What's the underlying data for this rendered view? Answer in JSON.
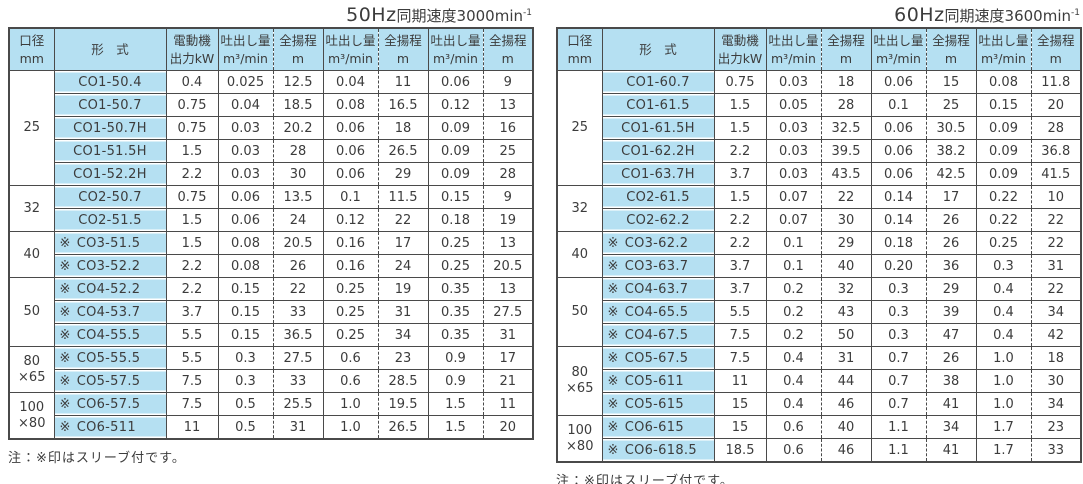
{
  "columns": {
    "diameter": {
      "line1": "口径",
      "line2": "mm"
    },
    "model": "形　式",
    "motor": {
      "line1": "電動機",
      "line2": "出力kW"
    },
    "discharge": {
      "line1": "吐出し量",
      "line2": "m³/min"
    },
    "head": {
      "line1": "全揚程",
      "line2": "m"
    }
  },
  "sleeve_mark": "※",
  "tables": [
    {
      "id": "50hz",
      "title": {
        "freq": "50Hz",
        "label": "同期速度3000min",
        "sup": "-1"
      },
      "note": "注：※印はスリーブ付です。",
      "groups": [
        {
          "size_lines": [
            "25"
          ],
          "rows": [
            {
              "sleeve": false,
              "model": "CO1-50.4",
              "values": [
                "0.4",
                "0.025",
                "12.5",
                "0.04",
                "11",
                "0.06",
                "9"
              ]
            },
            {
              "sleeve": false,
              "model": "CO1-50.7",
              "values": [
                "0.75",
                "0.04",
                "18.5",
                "0.08",
                "16.5",
                "0.12",
                "13"
              ]
            },
            {
              "sleeve": false,
              "model": "CO1-50.7H",
              "values": [
                "0.75",
                "0.03",
                "20.2",
                "0.06",
                "18",
                "0.09",
                "16"
              ]
            },
            {
              "sleeve": false,
              "model": "CO1-51.5H",
              "values": [
                "1.5",
                "0.03",
                "28",
                "0.06",
                "26.5",
                "0.09",
                "25"
              ]
            },
            {
              "sleeve": false,
              "model": "CO1-52.2H",
              "values": [
                "2.2",
                "0.03",
                "30",
                "0.06",
                "29",
                "0.09",
                "28"
              ]
            }
          ]
        },
        {
          "size_lines": [
            "32"
          ],
          "rows": [
            {
              "sleeve": false,
              "model": "CO2-50.7",
              "values": [
                "0.75",
                "0.06",
                "13.5",
                "0.1",
                "11.5",
                "0.15",
                "9"
              ]
            },
            {
              "sleeve": false,
              "model": "CO2-51.5",
              "values": [
                "1.5",
                "0.06",
                "24",
                "0.12",
                "22",
                "0.18",
                "19"
              ]
            }
          ]
        },
        {
          "size_lines": [
            "40"
          ],
          "rows": [
            {
              "sleeve": true,
              "model": "CO3-51.5",
              "values": [
                "1.5",
                "0.08",
                "20.5",
                "0.16",
                "17",
                "0.25",
                "13"
              ]
            },
            {
              "sleeve": true,
              "model": "CO3-52.2",
              "values": [
                "2.2",
                "0.08",
                "26",
                "0.16",
                "24",
                "0.25",
                "20.5"
              ]
            }
          ]
        },
        {
          "size_lines": [
            "50"
          ],
          "rows": [
            {
              "sleeve": true,
              "model": "CO4-52.2",
              "values": [
                "2.2",
                "0.15",
                "22",
                "0.25",
                "19",
                "0.35",
                "13"
              ]
            },
            {
              "sleeve": true,
              "model": "CO4-53.7",
              "values": [
                "3.7",
                "0.15",
                "33",
                "0.25",
                "31",
                "0.35",
                "27.5"
              ]
            },
            {
              "sleeve": true,
              "model": "CO4-55.5",
              "values": [
                "5.5",
                "0.15",
                "36.5",
                "0.25",
                "34",
                "0.35",
                "31"
              ]
            }
          ]
        },
        {
          "size_lines": [
            "80",
            "×65"
          ],
          "rows": [
            {
              "sleeve": true,
              "model": "CO5-55.5",
              "values": [
                "5.5",
                "0.3",
                "27.5",
                "0.6",
                "23",
                "0.9",
                "17"
              ]
            },
            {
              "sleeve": true,
              "model": "CO5-57.5",
              "values": [
                "7.5",
                "0.3",
                "33",
                "0.6",
                "28.5",
                "0.9",
                "21"
              ]
            }
          ]
        },
        {
          "size_lines": [
            "100",
            "×80"
          ],
          "rows": [
            {
              "sleeve": true,
              "model": "CO6-57.5",
              "values": [
                "7.5",
                "0.5",
                "25.5",
                "1.0",
                "19.5",
                "1.5",
                "11"
              ]
            },
            {
              "sleeve": true,
              "model": "CO6-511",
              "values": [
                "11",
                "0.5",
                "31",
                "1.0",
                "26.5",
                "1.5",
                "20"
              ]
            }
          ]
        }
      ]
    },
    {
      "id": "60hz",
      "title": {
        "freq": "60Hz",
        "label": "同期速度3600min",
        "sup": "-1"
      },
      "note": "注：※印はスリーブ付です。",
      "groups": [
        {
          "size_lines": [
            "25"
          ],
          "rows": [
            {
              "sleeve": false,
              "model": "CO1-60.7",
              "values": [
                "0.75",
                "0.03",
                "18",
                "0.06",
                "15",
                "0.08",
                "11.8"
              ]
            },
            {
              "sleeve": false,
              "model": "CO1-61.5",
              "values": [
                "1.5",
                "0.05",
                "28",
                "0.1",
                "25",
                "0.15",
                "20"
              ]
            },
            {
              "sleeve": false,
              "model": "CO1-61.5H",
              "values": [
                "1.5",
                "0.03",
                "32.5",
                "0.06",
                "30.5",
                "0.09",
                "28"
              ]
            },
            {
              "sleeve": false,
              "model": "CO1-62.2H",
              "values": [
                "2.2",
                "0.03",
                "39.5",
                "0.06",
                "38.2",
                "0.09",
                "36.8"
              ]
            },
            {
              "sleeve": false,
              "model": "CO1-63.7H",
              "values": [
                "3.7",
                "0.03",
                "43.5",
                "0.06",
                "42.5",
                "0.09",
                "41.5"
              ]
            }
          ]
        },
        {
          "size_lines": [
            "32"
          ],
          "rows": [
            {
              "sleeve": false,
              "model": "CO2-61.5",
              "values": [
                "1.5",
                "0.07",
                "22",
                "0.14",
                "17",
                "0.22",
                "10"
              ]
            },
            {
              "sleeve": false,
              "model": "CO2-62.2",
              "values": [
                "2.2",
                "0.07",
                "30",
                "0.14",
                "26",
                "0.22",
                "22"
              ]
            }
          ]
        },
        {
          "size_lines": [
            "40"
          ],
          "rows": [
            {
              "sleeve": true,
              "model": "CO3-62.2",
              "values": [
                "2.2",
                "0.1",
                "29",
                "0.18",
                "26",
                "0.25",
                "22"
              ]
            },
            {
              "sleeve": true,
              "model": "CO3-63.7",
              "values": [
                "3.7",
                "0.1",
                "40",
                "0.20",
                "36",
                "0.3",
                "31"
              ]
            }
          ]
        },
        {
          "size_lines": [
            "50"
          ],
          "rows": [
            {
              "sleeve": true,
              "model": "CO4-63.7",
              "values": [
                "3.7",
                "0.2",
                "32",
                "0.3",
                "29",
                "0.4",
                "22"
              ]
            },
            {
              "sleeve": true,
              "model": "CO4-65.5",
              "values": [
                "5.5",
                "0.2",
                "43",
                "0.3",
                "39",
                "0.4",
                "34"
              ]
            },
            {
              "sleeve": true,
              "model": "CO4-67.5",
              "values": [
                "7.5",
                "0.2",
                "50",
                "0.3",
                "47",
                "0.4",
                "42"
              ]
            }
          ]
        },
        {
          "size_lines": [
            "80",
            "×65"
          ],
          "rows": [
            {
              "sleeve": true,
              "model": "CO5-67.5",
              "values": [
                "7.5",
                "0.4",
                "31",
                "0.7",
                "26",
                "1.0",
                "18"
              ]
            },
            {
              "sleeve": true,
              "model": "CO5-611",
              "values": [
                "11",
                "0.4",
                "44",
                "0.7",
                "38",
                "1.0",
                "30"
              ]
            },
            {
              "sleeve": true,
              "model": "CO5-615",
              "values": [
                "15",
                "0.4",
                "46",
                "0.7",
                "41",
                "1.0",
                "34"
              ]
            }
          ]
        },
        {
          "size_lines": [
            "100",
            "×80"
          ],
          "rows": [
            {
              "sleeve": true,
              "model": "CO6-615",
              "values": [
                "15",
                "0.6",
                "40",
                "1.1",
                "34",
                "1.7",
                "23"
              ]
            },
            {
              "sleeve": true,
              "model": "CO6-618.5",
              "values": [
                "18.5",
                "0.6",
                "46",
                "1.1",
                "41",
                "1.7",
                "33"
              ]
            }
          ]
        }
      ]
    }
  ]
}
